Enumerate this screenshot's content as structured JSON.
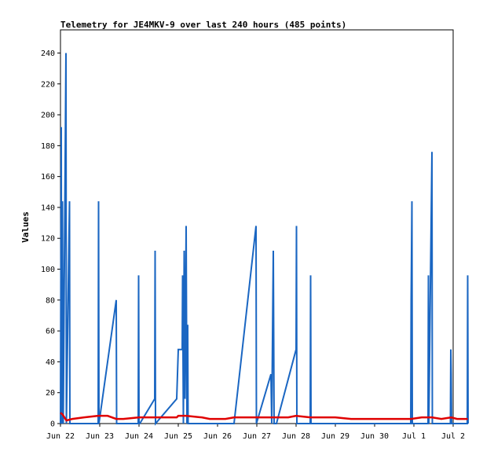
{
  "chart_data": {
    "type": "line",
    "title": "Telemetry for JE4MKV-9 over last 240 hours (485 points)",
    "xlabel": "",
    "ylabel": "Values",
    "x_tick_labels": [
      "Jun 22",
      "Jun 23",
      "Jun 24",
      "Jun 25",
      "Jun 26",
      "Jun 27",
      "Jun 28",
      "Jun 29",
      "Jun 30",
      "Jul 1",
      "Jul 2"
    ],
    "xlim_days": [
      0,
      10
    ],
    "ylim": [
      0,
      255
    ],
    "y_ticks": [
      0,
      20,
      40,
      60,
      80,
      100,
      120,
      140,
      160,
      180,
      200,
      220,
      240
    ],
    "grid": false,
    "legend": "none",
    "series": [
      {
        "color": "#1a66c2",
        "points": [
          [
            0.0,
            0
          ],
          [
            0.02,
            192
          ],
          [
            0.03,
            0
          ],
          [
            0.05,
            144
          ],
          [
            0.07,
            0
          ],
          [
            0.14,
            240
          ],
          [
            0.15,
            0
          ],
          [
            0.23,
            144
          ],
          [
            0.24,
            0
          ],
          [
            0.96,
            0
          ],
          [
            0.97,
            144
          ],
          [
            0.98,
            0
          ],
          [
            1.42,
            80
          ],
          [
            1.43,
            0
          ],
          [
            1.98,
            0
          ],
          [
            1.99,
            96
          ],
          [
            2.0,
            0
          ],
          [
            2.02,
            0
          ],
          [
            2.4,
            16
          ],
          [
            2.41,
            112
          ],
          [
            2.42,
            0
          ],
          [
            2.96,
            16
          ],
          [
            3.0,
            48
          ],
          [
            3.1,
            48
          ],
          [
            3.11,
            96
          ],
          [
            3.13,
            0
          ],
          [
            3.15,
            112
          ],
          [
            3.17,
            16
          ],
          [
            3.2,
            128
          ],
          [
            3.22,
            0
          ],
          [
            3.24,
            64
          ],
          [
            3.25,
            0
          ],
          [
            4.42,
            0
          ],
          [
            4.98,
            128
          ],
          [
            4.99,
            0
          ],
          [
            5.36,
            32
          ],
          [
            5.38,
            0
          ],
          [
            5.42,
            112
          ],
          [
            5.44,
            0
          ],
          [
            5.5,
            0
          ],
          [
            6.0,
            48
          ],
          [
            6.01,
            128
          ],
          [
            6.02,
            0
          ],
          [
            6.36,
            0
          ],
          [
            6.37,
            96
          ],
          [
            6.38,
            0
          ],
          [
            8.92,
            0
          ],
          [
            8.93,
            80
          ],
          [
            8.95,
            144
          ],
          [
            8.96,
            0
          ],
          [
            9.36,
            0
          ],
          [
            9.37,
            96
          ],
          [
            9.38,
            0
          ],
          [
            9.46,
            176
          ],
          [
            9.47,
            0
          ],
          [
            9.93,
            0
          ],
          [
            9.94,
            48
          ],
          [
            9.95,
            32
          ],
          [
            9.96,
            0
          ],
          [
            10.36,
            0
          ],
          [
            10.37,
            96
          ],
          [
            10.38,
            0
          ]
        ]
      },
      {
        "color": "#e00000",
        "points": [
          [
            0.0,
            7
          ],
          [
            0.05,
            6
          ],
          [
            0.15,
            2
          ],
          [
            0.3,
            3
          ],
          [
            0.6,
            4
          ],
          [
            0.96,
            5
          ],
          [
            1.2,
            5
          ],
          [
            1.42,
            3
          ],
          [
            1.6,
            3
          ],
          [
            2.0,
            4
          ],
          [
            2.4,
            4
          ],
          [
            2.96,
            4
          ],
          [
            3.0,
            5
          ],
          [
            3.2,
            5
          ],
          [
            3.6,
            4
          ],
          [
            3.8,
            3
          ],
          [
            4.2,
            3
          ],
          [
            4.42,
            4
          ],
          [
            4.98,
            4
          ],
          [
            5.4,
            4
          ],
          [
            5.5,
            4
          ],
          [
            5.8,
            4
          ],
          [
            6.0,
            5
          ],
          [
            6.36,
            4
          ],
          [
            6.6,
            4
          ],
          [
            7.0,
            4
          ],
          [
            7.4,
            3
          ],
          [
            7.8,
            3
          ],
          [
            8.2,
            3
          ],
          [
            8.93,
            3
          ],
          [
            9.2,
            4
          ],
          [
            9.46,
            4
          ],
          [
            9.7,
            3
          ],
          [
            9.95,
            4
          ],
          [
            10.1,
            3
          ],
          [
            10.37,
            3
          ]
        ]
      }
    ]
  }
}
